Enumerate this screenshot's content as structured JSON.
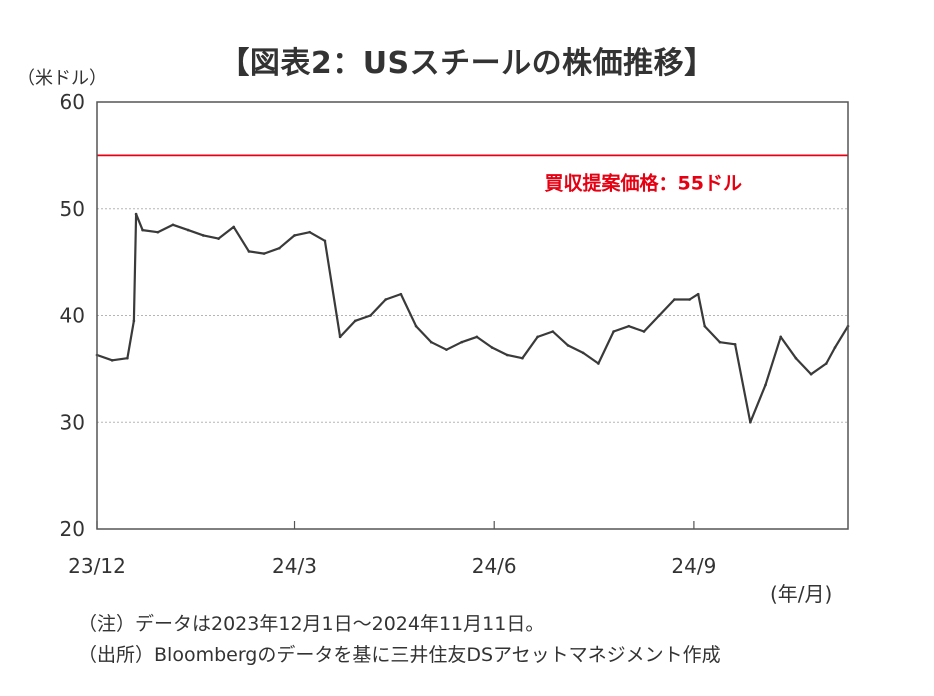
{
  "chart_data": {
    "type": "line",
    "title": "【図表2：USスチールの株価推移】",
    "ylabel": "（米ドル）",
    "xlabel": "(年/月)",
    "ylim": [
      20,
      60
    ],
    "yticks": [
      20,
      30,
      40,
      50,
      60
    ],
    "xticks": [
      "23/12",
      "24/3",
      "24/6",
      "24/9"
    ],
    "grid": true,
    "reference_line": {
      "value": 55,
      "label": "買収提案価格：55ドル",
      "color": "#e60012"
    },
    "series": [
      {
        "color": "#3a3a3a",
        "x": [
          "2023-12-01",
          "2023-12-08",
          "2023-12-15",
          "2023-12-18",
          "2023-12-19",
          "2023-12-22",
          "2023-12-29",
          "2024-01-05",
          "2024-01-12",
          "2024-01-19",
          "2024-01-26",
          "2024-02-02",
          "2024-02-09",
          "2024-02-16",
          "2024-02-23",
          "2024-03-01",
          "2024-03-08",
          "2024-03-15",
          "2024-03-22",
          "2024-03-29",
          "2024-04-05",
          "2024-04-12",
          "2024-04-19",
          "2024-04-26",
          "2024-05-03",
          "2024-05-10",
          "2024-05-17",
          "2024-05-24",
          "2024-05-31",
          "2024-06-07",
          "2024-06-14",
          "2024-06-21",
          "2024-06-28",
          "2024-07-05",
          "2024-07-12",
          "2024-07-19",
          "2024-07-26",
          "2024-08-02",
          "2024-08-09",
          "2024-08-16",
          "2024-08-23",
          "2024-08-30",
          "2024-09-03",
          "2024-09-06",
          "2024-09-13",
          "2024-09-20",
          "2024-09-27",
          "2024-10-04",
          "2024-10-11",
          "2024-10-18",
          "2024-10-25",
          "2024-11-01",
          "2024-11-05",
          "2024-11-11"
        ],
        "y": [
          36.3,
          35.8,
          36.0,
          39.5,
          49.5,
          48.0,
          47.8,
          48.5,
          48.0,
          47.5,
          47.2,
          48.3,
          46.0,
          45.8,
          46.3,
          47.5,
          47.8,
          47.0,
          38.0,
          39.5,
          40.0,
          41.5,
          42.0,
          39.0,
          37.5,
          36.8,
          37.5,
          38.0,
          37.0,
          36.3,
          36.0,
          38.0,
          38.5,
          37.2,
          36.5,
          35.5,
          38.5,
          39.0,
          38.5,
          40.0,
          41.5,
          41.5,
          42.0,
          39.0,
          37.5,
          37.3,
          30.0,
          33.5,
          38.0,
          36.0,
          34.5,
          35.5,
          37.0,
          39.0
        ]
      }
    ]
  },
  "notes": {
    "note1": "（注）データは2023年12月1日～2024年11月11日。",
    "note2": "（出所）Bloombergのデータを基に三井住友DSアセットマネジメント作成"
  }
}
